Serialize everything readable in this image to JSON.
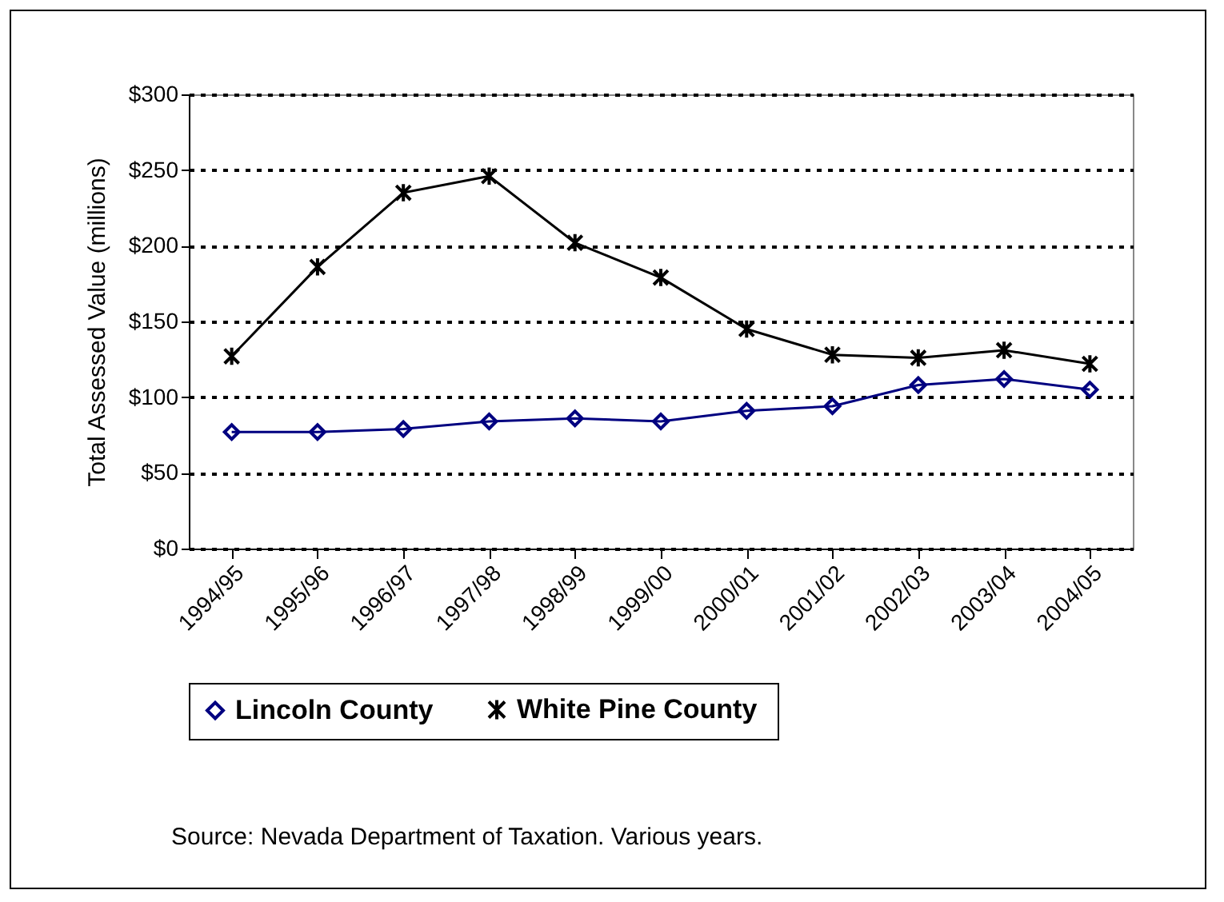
{
  "chart_data": {
    "type": "line",
    "ylabel": "Total Assessed Value (millions)",
    "categories": [
      "1994/95",
      "1995/96",
      "1996/97",
      "1997/98",
      "1998/99",
      "1999/00",
      "2000/01",
      "2001/02",
      "2002/03",
      "2003/04",
      "2004/05"
    ],
    "series": [
      {
        "name": "Lincoln County",
        "color": "#000080",
        "marker": "diamond",
        "values": [
          77,
          77,
          79,
          84,
          86,
          84,
          91,
          94,
          108,
          112,
          105
        ]
      },
      {
        "name": "White Pine  County",
        "color": "#000000",
        "marker": "cross",
        "values": [
          127,
          186,
          235,
          246,
          202,
          179,
          145,
          128,
          126,
          131,
          122
        ]
      }
    ],
    "ylim": [
      0,
      300
    ],
    "yticks": [
      {
        "value": 0,
        "label": "$0"
      },
      {
        "value": 50,
        "label": "$50"
      },
      {
        "value": 100,
        "label": "$100"
      },
      {
        "value": 150,
        "label": "$150"
      },
      {
        "value": 200,
        "label": "$200"
      },
      {
        "value": 250,
        "label": "$250"
      },
      {
        "value": 300,
        "label": "$300"
      }
    ],
    "grid": "y",
    "legend": "bottom",
    "annotations": [
      "Source: Nevada Department of Taxation. Various years."
    ]
  }
}
